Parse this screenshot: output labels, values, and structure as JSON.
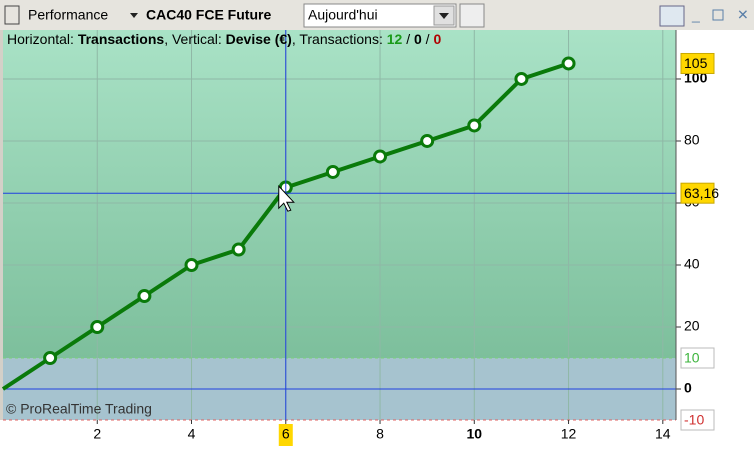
{
  "toolbar": {
    "section": "Performance",
    "instrument": "CAC40 FCE Future",
    "period": "Aujourd'hui"
  },
  "info": [
    "Horizontal: ",
    "Transactions",
    ", Vertical: ",
    "Devise (€)",
    ", Transactions: ",
    "12",
    " / ",
    "0",
    " / ",
    "0"
  ],
  "watermark": "© ProRealTime Trading",
  "chart_data": {
    "type": "line",
    "x": [
      0,
      1,
      2,
      3,
      4,
      5,
      6,
      7,
      8,
      9,
      10,
      11,
      12
    ],
    "series": [
      {
        "color": "#0a7a0a",
        "values": [
          0,
          10,
          20,
          30,
          40,
          45,
          65,
          70,
          75,
          80,
          85,
          100,
          105
        ]
      }
    ],
    "xlim": [
      0,
      14.28
    ],
    "ylim": [
      -10,
      115.8
    ],
    "xticks": [
      2,
      4,
      6,
      8,
      10,
      12,
      14
    ],
    "yticks": [
      0,
      20,
      40,
      60,
      80,
      100
    ],
    "grid": true,
    "crosshair": {
      "x": 6,
      "y": {
        "value": 63.16,
        "label": "63,16"
      }
    },
    "levels": [
      {
        "value": 105,
        "kind": "last"
      },
      {
        "value": 10,
        "kind": "upper"
      },
      {
        "value": -10,
        "kind": "lower"
      }
    ]
  }
}
